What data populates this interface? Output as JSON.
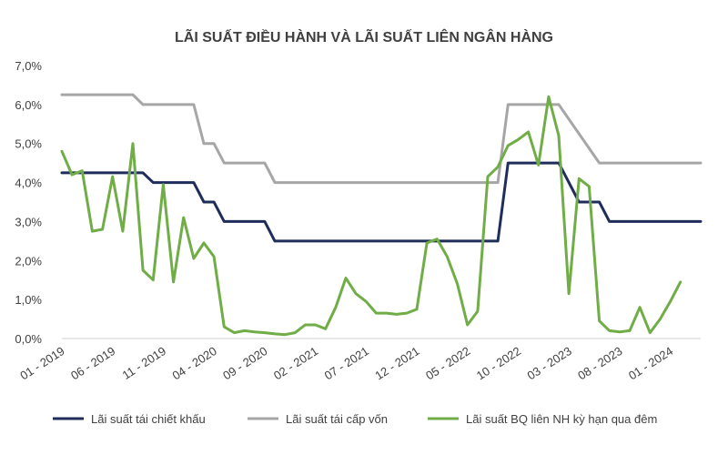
{
  "chart_data": {
    "type": "line",
    "title": "LÃI SUẤT ĐIỀU HÀNH VÀ LÃI SUẤT LIÊN NGÂN HÀNG",
    "xlabel": "",
    "ylabel": "",
    "ylim": [
      0,
      7
    ],
    "y_ticks": [
      0,
      1,
      2,
      3,
      4,
      5,
      6,
      7
    ],
    "y_tick_labels": [
      "0,0%",
      "1,0%",
      "2,0%",
      "3,0%",
      "4,0%",
      "5,0%",
      "6,0%",
      "7,0%"
    ],
    "x_range": [
      "2019-01",
      "2024-04"
    ],
    "x_tick_labels": [
      {
        "date": "2019-01",
        "label": "01 - 2019"
      },
      {
        "date": "2019-06",
        "label": "06 - 2019"
      },
      {
        "date": "2019-11",
        "label": "11 - 2019"
      },
      {
        "date": "2020-04",
        "label": "04 - 2020"
      },
      {
        "date": "2020-09",
        "label": "09 - 2020"
      },
      {
        "date": "2021-02",
        "label": "02 - 2021"
      },
      {
        "date": "2021-07",
        "label": "07 - 2021"
      },
      {
        "date": "2021-12",
        "label": "12 - 2021"
      },
      {
        "date": "2022-05",
        "label": "05 - 2022"
      },
      {
        "date": "2022-10",
        "label": "10 - 2022"
      },
      {
        "date": "2023-03",
        "label": "03 - 2023"
      },
      {
        "date": "2023-08",
        "label": "08 - 2023"
      },
      {
        "date": "2024-01",
        "label": "01 - 2024"
      }
    ],
    "grid": false,
    "legend_position": "bottom",
    "series": [
      {
        "name": "Lãi suất tái chiết khấu",
        "color": "#1f2d5a",
        "points": [
          {
            "x": "2019-01",
            "y": 4.25
          },
          {
            "x": "2019-09",
            "y": 4.25
          },
          {
            "x": "2019-10",
            "y": 4.0
          },
          {
            "x": "2020-02",
            "y": 4.0
          },
          {
            "x": "2020-03",
            "y": 3.5
          },
          {
            "x": "2020-04",
            "y": 3.5
          },
          {
            "x": "2020-05",
            "y": 3.0
          },
          {
            "x": "2020-09",
            "y": 3.0
          },
          {
            "x": "2020-10",
            "y": 2.5
          },
          {
            "x": "2022-08",
            "y": 2.5
          },
          {
            "x": "2022-09",
            "y": 4.5
          },
          {
            "x": "2023-02",
            "y": 4.5
          },
          {
            "x": "2023-04",
            "y": 3.5
          },
          {
            "x": "2023-06",
            "y": 3.5
          },
          {
            "x": "2023-07",
            "y": 3.0
          },
          {
            "x": "2024-04",
            "y": 3.0
          }
        ]
      },
      {
        "name": "Lãi suất tái cấp vốn",
        "color": "#a6a6a6",
        "points": [
          {
            "x": "2019-01",
            "y": 6.25
          },
          {
            "x": "2019-08",
            "y": 6.25
          },
          {
            "x": "2019-09",
            "y": 6.0
          },
          {
            "x": "2020-02",
            "y": 6.0
          },
          {
            "x": "2020-03",
            "y": 5.0
          },
          {
            "x": "2020-04",
            "y": 5.0
          },
          {
            "x": "2020-05",
            "y": 4.5
          },
          {
            "x": "2020-09",
            "y": 4.5
          },
          {
            "x": "2020-10",
            "y": 4.0
          },
          {
            "x": "2022-08",
            "y": 4.0
          },
          {
            "x": "2022-09",
            "y": 6.0
          },
          {
            "x": "2023-02",
            "y": 6.0
          },
          {
            "x": "2023-06",
            "y": 4.5
          },
          {
            "x": "2024-04",
            "y": 4.5
          }
        ]
      },
      {
        "name": "Lãi suất BQ liên NH kỳ hạn qua đêm",
        "color": "#70ad47",
        "points": [
          {
            "x": "2019-01",
            "y": 4.8
          },
          {
            "x": "2019-02",
            "y": 4.2
          },
          {
            "x": "2019-03",
            "y": 4.3
          },
          {
            "x": "2019-04",
            "y": 2.75
          },
          {
            "x": "2019-05",
            "y": 2.8
          },
          {
            "x": "2019-06",
            "y": 4.15
          },
          {
            "x": "2019-07",
            "y": 2.75
          },
          {
            "x": "2019-08",
            "y": 5.0
          },
          {
            "x": "2019-09",
            "y": 1.75
          },
          {
            "x": "2019-10",
            "y": 1.5
          },
          {
            "x": "2019-11",
            "y": 3.95
          },
          {
            "x": "2019-12",
            "y": 1.45
          },
          {
            "x": "2020-01",
            "y": 3.1
          },
          {
            "x": "2020-02",
            "y": 2.05
          },
          {
            "x": "2020-03",
            "y": 2.45
          },
          {
            "x": "2020-04",
            "y": 2.1
          },
          {
            "x": "2020-05",
            "y": 0.3
          },
          {
            "x": "2020-06",
            "y": 0.15
          },
          {
            "x": "2020-07",
            "y": 0.2
          },
          {
            "x": "2020-08",
            "y": 0.17
          },
          {
            "x": "2020-09",
            "y": 0.15
          },
          {
            "x": "2020-10",
            "y": 0.12
          },
          {
            "x": "2020-11",
            "y": 0.1
          },
          {
            "x": "2020-12",
            "y": 0.15
          },
          {
            "x": "2021-01",
            "y": 0.35
          },
          {
            "x": "2021-02",
            "y": 0.35
          },
          {
            "x": "2021-03",
            "y": 0.25
          },
          {
            "x": "2021-04",
            "y": 0.8
          },
          {
            "x": "2021-05",
            "y": 1.55
          },
          {
            "x": "2021-06",
            "y": 1.15
          },
          {
            "x": "2021-07",
            "y": 0.95
          },
          {
            "x": "2021-08",
            "y": 0.65
          },
          {
            "x": "2021-09",
            "y": 0.65
          },
          {
            "x": "2021-10",
            "y": 0.62
          },
          {
            "x": "2021-11",
            "y": 0.65
          },
          {
            "x": "2021-12",
            "y": 0.75
          },
          {
            "x": "2022-01",
            "y": 2.45
          },
          {
            "x": "2022-02",
            "y": 2.55
          },
          {
            "x": "2022-03",
            "y": 2.1
          },
          {
            "x": "2022-04",
            "y": 1.4
          },
          {
            "x": "2022-05",
            "y": 0.35
          },
          {
            "x": "2022-06",
            "y": 0.7
          },
          {
            "x": "2022-07",
            "y": 4.15
          },
          {
            "x": "2022-08",
            "y": 4.4
          },
          {
            "x": "2022-09",
            "y": 4.95
          },
          {
            "x": "2022-10",
            "y": 5.1
          },
          {
            "x": "2022-11",
            "y": 5.3
          },
          {
            "x": "2022-12",
            "y": 4.45
          },
          {
            "x": "2023-01",
            "y": 6.2
          },
          {
            "x": "2023-02",
            "y": 5.2
          },
          {
            "x": "2023-03",
            "y": 1.15
          },
          {
            "x": "2023-04",
            "y": 4.1
          },
          {
            "x": "2023-05",
            "y": 3.9
          },
          {
            "x": "2023-06",
            "y": 0.45
          },
          {
            "x": "2023-07",
            "y": 0.2
          },
          {
            "x": "2023-08",
            "y": 0.17
          },
          {
            "x": "2023-09",
            "y": 0.2
          },
          {
            "x": "2023-10",
            "y": 0.8
          },
          {
            "x": "2023-11",
            "y": 0.15
          },
          {
            "x": "2023-12",
            "y": 0.5
          },
          {
            "x": "2024-01",
            "y": 0.95
          },
          {
            "x": "2024-02",
            "y": 1.45
          }
        ]
      }
    ]
  }
}
